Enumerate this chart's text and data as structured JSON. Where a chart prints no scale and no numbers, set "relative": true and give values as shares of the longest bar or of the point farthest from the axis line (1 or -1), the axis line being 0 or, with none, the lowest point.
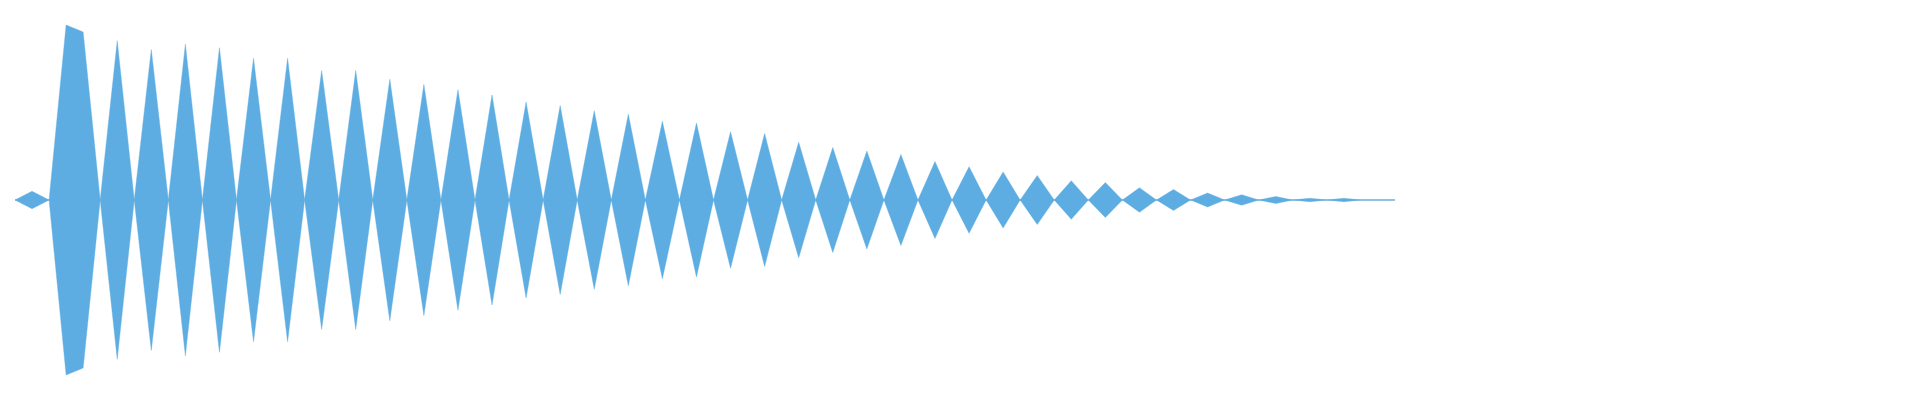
{
  "chart_data": {
    "type": "area",
    "relative": true,
    "categories": [
      null,
      null,
      null,
      null,
      null,
      null,
      null,
      null,
      null,
      null,
      null,
      null,
      null,
      null,
      null,
      null,
      null,
      null,
      null,
      null,
      null,
      null,
      null,
      null,
      null,
      null,
      null,
      null,
      null,
      null,
      null,
      null,
      null,
      null,
      null,
      null,
      null,
      null,
      null,
      null,
      null,
      null,
      null,
      null,
      null,
      null,
      null,
      null,
      null,
      null,
      null,
      null,
      null,
      null,
      null,
      null,
      null,
      null,
      null,
      null,
      null,
      null,
      null,
      null,
      null,
      null,
      null,
      null,
      null,
      null,
      null,
      null,
      null,
      null,
      null,
      null,
      null,
      null,
      null,
      null,
      null,
      null
    ],
    "series": [
      {
        "color": "#5dade2",
        "values": [
          0,
          0.05,
          0,
          1.0,
          0.96,
          0,
          0.91,
          0,
          0.86,
          0,
          0.89,
          0,
          0.87,
          0,
          0.81,
          0,
          0.81,
          0,
          0.74,
          0,
          0.74,
          0,
          0.69,
          0,
          0.66,
          0,
          0.63,
          0,
          0.6,
          0,
          0.56,
          0,
          0.54,
          0,
          0.51,
          0,
          0.49,
          0,
          0.45,
          0,
          0.44,
          0,
          0.39,
          0,
          0.38,
          0,
          0.33,
          0,
          0.3,
          0,
          0.28,
          0,
          0.26,
          0,
          0.22,
          0,
          0.19,
          0,
          0.16,
          0,
          0.14,
          0,
          0.11,
          0,
          0.1,
          0,
          0.07,
          0,
          0.06,
          0,
          0.04,
          0,
          0.03,
          0,
          0.02,
          0,
          0.01,
          0,
          0.01,
          0,
          0,
          0
        ]
      },
      {
        "color": "#5dade2",
        "values": [
          0,
          -0.05,
          0,
          -1.0,
          -0.96,
          0,
          -0.91,
          0,
          -0.86,
          0,
          -0.89,
          0,
          -0.87,
          0,
          -0.81,
          0,
          -0.81,
          0,
          -0.74,
          0,
          -0.74,
          0,
          -0.69,
          0,
          -0.66,
          0,
          -0.63,
          0,
          -0.6,
          0,
          -0.56,
          0,
          -0.54,
          0,
          -0.51,
          0,
          -0.49,
          0,
          -0.45,
          0,
          -0.44,
          0,
          -0.39,
          0,
          -0.38,
          0,
          -0.33,
          0,
          -0.3,
          0,
          -0.28,
          0,
          -0.26,
          0,
          -0.22,
          0,
          -0.19,
          0,
          -0.16,
          0,
          -0.14,
          0,
          -0.11,
          0,
          -0.1,
          0,
          -0.07,
          0,
          -0.06,
          0,
          -0.04,
          0,
          -0.03,
          0,
          -0.02,
          0,
          -0.01,
          0,
          -0.01,
          0,
          0,
          0
        ]
      }
    ]
  }
}
